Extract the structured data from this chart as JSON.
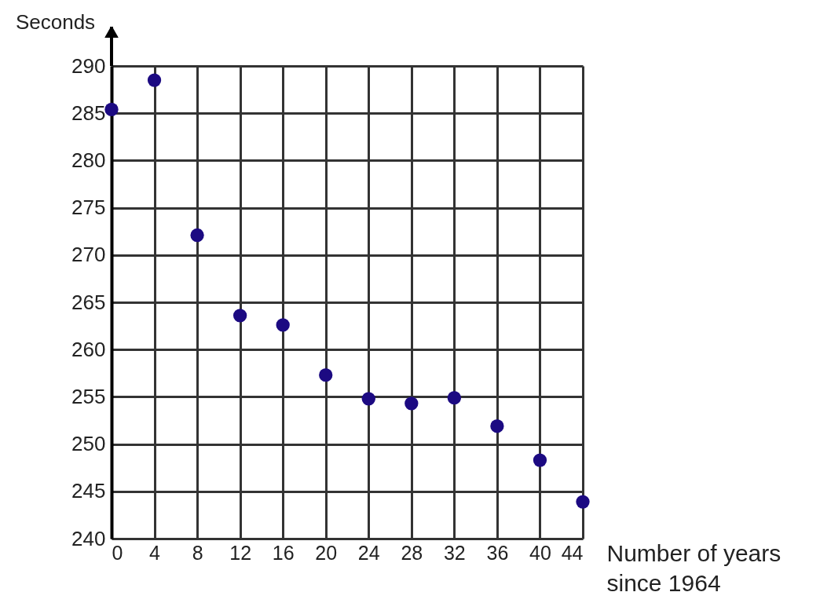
{
  "chart_data": {
    "type": "scatter",
    "xlabel": "Number of years\nsince 1964",
    "ylabel": "Seconds",
    "x": [
      0,
      4,
      8,
      12,
      16,
      20,
      24,
      28,
      32,
      36,
      40,
      44
    ],
    "series": [
      {
        "color": "#1c0a82",
        "values": [
          285.4,
          288.5,
          272.1,
          263.6,
          262.6,
          257.3,
          254.8,
          254.3,
          254.9,
          251.9,
          248.3,
          243.9
        ]
      }
    ],
    "xlim": [
      0,
      44
    ],
    "xticks": [
      0,
      4,
      8,
      12,
      16,
      20,
      24,
      28,
      32,
      36,
      40,
      44
    ],
    "ylim": [
      240,
      290
    ],
    "yticks": [
      240,
      245,
      250,
      255,
      260,
      265,
      270,
      275,
      280,
      285,
      290
    ],
    "grid": true,
    "marker": "circle"
  }
}
